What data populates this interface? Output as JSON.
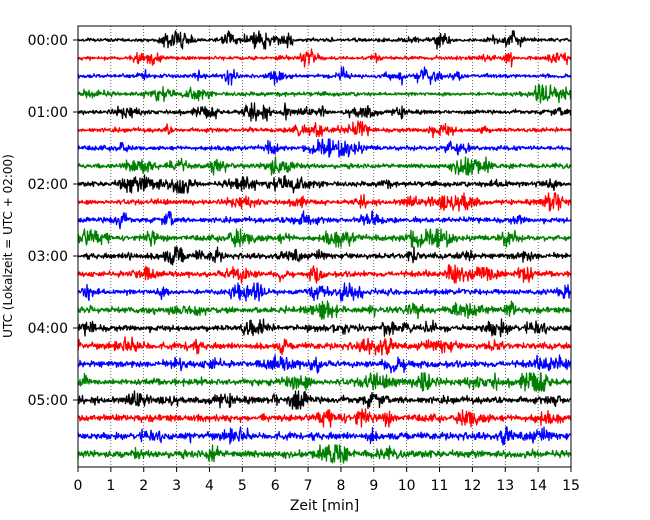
{
  "chart_data": {
    "type": "line",
    "title": "",
    "xlabel": "Zeit  [min]",
    "ylabel": "UTC (Lokalzeit = UTC + 02:00)",
    "xlim": [
      0,
      15
    ],
    "x_ticks": [
      "0",
      "1",
      "2",
      "3",
      "4",
      "5",
      "6",
      "7",
      "8",
      "9",
      "10",
      "11",
      "12",
      "13",
      "14",
      "15"
    ],
    "y_tick_labels": [
      "00:00",
      "01:00",
      "02:00",
      "03:00",
      "04:00",
      "05:00"
    ],
    "trace_interval_min": 15,
    "trace_count": 24,
    "trace_colors": [
      "#000000",
      "#ff0000",
      "#0000ff",
      "#008000"
    ],
    "grid": "vertical dotted lines at each minute",
    "legend": "none"
  }
}
